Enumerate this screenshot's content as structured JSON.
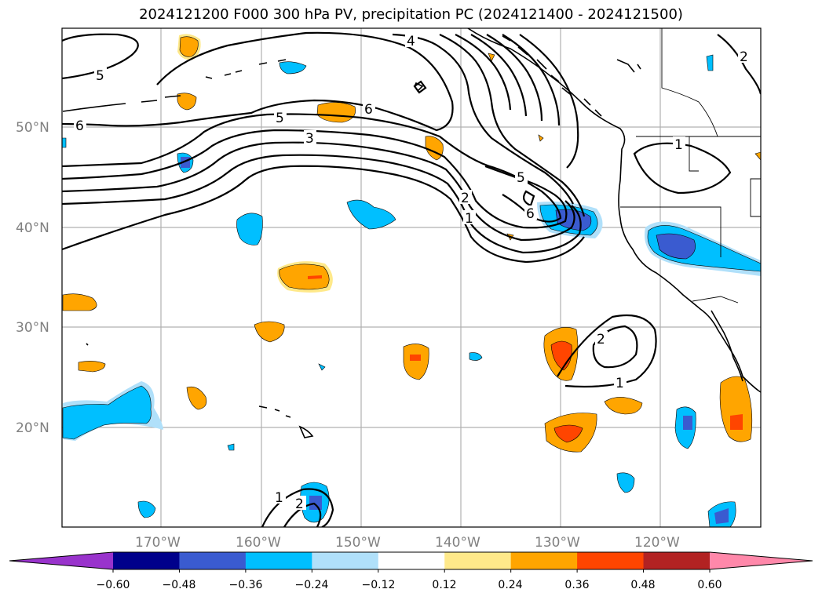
{
  "title": "2024121200 F000 300 hPa PV, precipitation PC (2024121400 - 2024121500)",
  "map": {
    "lat_ticks": [
      "50°N",
      "40°N",
      "30°N",
      "20°N"
    ],
    "lon_ticks": [
      "170°W",
      "160°W",
      "150°W",
      "140°W",
      "130°W",
      "120°W"
    ],
    "extent": {
      "lon_min": -180,
      "lon_max": -110,
      "lat_min": 10,
      "lat_max": 60
    },
    "gridlines": true
  },
  "contour_labels": [
    "5",
    "6",
    "4",
    "5",
    "6",
    "3",
    "5",
    "2",
    "1",
    "6",
    "2",
    "1",
    "1",
    "2",
    "1",
    "2"
  ],
  "colorbar": {
    "ticks": [
      "−0.60",
      "−0.48",
      "−0.36",
      "−0.24",
      "−0.12",
      "0.12",
      "0.24",
      "0.36",
      "0.48",
      "0.60"
    ],
    "colors": [
      "#9933cc",
      "#00008b",
      "#3a5bd0",
      "#00bfff",
      "#b0e0fa",
      "#ffffff",
      "#ffe98a",
      "#ffa500",
      "#ff4500",
      "#b22222",
      "#ff88aa"
    ]
  }
}
